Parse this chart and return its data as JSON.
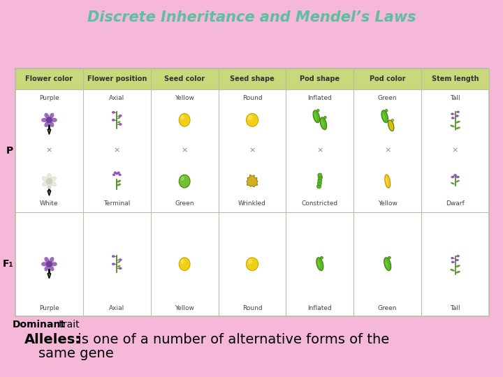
{
  "bg_color": "#f5b8d8",
  "title": "Discrete Inheritance and Mendel’s Laws",
  "title_color": "#5cbfa0",
  "title_fontsize": 15,
  "header_color": "#c8d87a",
  "header_text_color": "#333333",
  "cols": [
    "Flower color",
    "Flower position",
    "Seed color",
    "Seed shape",
    "Pod shape",
    "Pod color",
    "Stem length"
  ],
  "p_top": [
    "Purple",
    "Axial",
    "Yellow",
    "Round",
    "Inflated",
    "Green",
    "Tall"
  ],
  "p_bot": [
    "White",
    "Terminal",
    "Green",
    "Wrinkled",
    "Constricted",
    "Yellow",
    "Dwarf"
  ],
  "f1": [
    "Purple",
    "Axial",
    "Yellow",
    "Round",
    "Inflated",
    "Green",
    "Tall"
  ],
  "row_label_P": "P",
  "row_label_F1": "F₁",
  "dominant_bold": "Dominant",
  "dominant_normal": " trait",
  "dominant_fontsize": 10,
  "alleles_bold": "Alleles:",
  "alleles_normal": " is one of a number of alternative forms of the",
  "alleles_line2": "same gene",
  "alleles_fontsize": 14,
  "table_border_color": "#bbbbaa",
  "cell_bg": "#ffffff"
}
